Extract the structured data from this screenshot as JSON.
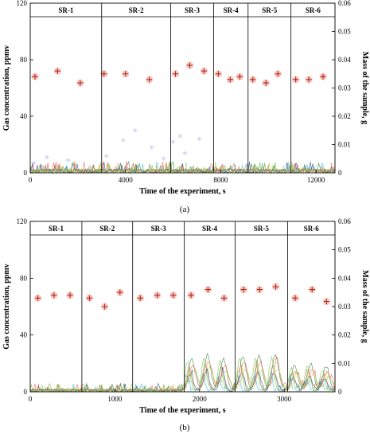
{
  "chart_data": [
    {
      "type": "scatter",
      "panel_label": "(a)",
      "xlabel": "Time of the experiment, s",
      "ylabel": "Gas concentration, ppmv",
      "y2label": "Mass of the sample, g",
      "xlim": [
        0,
        12800
      ],
      "ylim": [
        0,
        120
      ],
      "y2lim": [
        0,
        0.06
      ],
      "xticks": [
        0,
        4000,
        8000,
        12000
      ],
      "yticks": [
        0,
        40,
        80,
        120
      ],
      "y2ticks": [
        0,
        0.01,
        0.02,
        0.03,
        0.04,
        0.05,
        0.06
      ],
      "segments": [
        {
          "label": "SR-1",
          "x0": 0,
          "x1": 3000
        },
        {
          "label": "SR-2",
          "x0": 3000,
          "x1": 5900
        },
        {
          "label": "SR-3",
          "x0": 5900,
          "x1": 7700
        },
        {
          "label": "SR-4",
          "x0": 7700,
          "x1": 9150
        },
        {
          "label": "SR-5",
          "x0": 9150,
          "x1": 10950
        },
        {
          "label": "SR-6",
          "x0": 10950,
          "x1": 12800
        }
      ],
      "mass_points": [
        {
          "x": 200,
          "y": 0.034
        },
        {
          "x": 1150,
          "y": 0.036
        },
        {
          "x": 2100,
          "y": 0.0318
        },
        {
          "x": 3100,
          "y": 0.035
        },
        {
          "x": 4000,
          "y": 0.035
        },
        {
          "x": 5000,
          "y": 0.033
        },
        {
          "x": 6100,
          "y": 0.035
        },
        {
          "x": 6700,
          "y": 0.038
        },
        {
          "x": 7300,
          "y": 0.036
        },
        {
          "x": 7900,
          "y": 0.035
        },
        {
          "x": 8400,
          "y": 0.033
        },
        {
          "x": 8800,
          "y": 0.034
        },
        {
          "x": 9350,
          "y": 0.033
        },
        {
          "x": 9900,
          "y": 0.0318
        },
        {
          "x": 10400,
          "y": 0.035
        },
        {
          "x": 11150,
          "y": 0.033
        },
        {
          "x": 11700,
          "y": 0.033
        },
        {
          "x": 12300,
          "y": 0.034
        }
      ],
      "faint_points": [
        {
          "x": 150,
          "y": 7
        },
        {
          "x": 700,
          "y": 11
        },
        {
          "x": 1600,
          "y": 9
        },
        {
          "x": 2500,
          "y": 4
        },
        {
          "x": 3200,
          "y": 12
        },
        {
          "x": 3900,
          "y": 23
        },
        {
          "x": 4400,
          "y": 30
        },
        {
          "x": 5100,
          "y": 18
        },
        {
          "x": 5600,
          "y": 10
        },
        {
          "x": 6000,
          "y": 22
        },
        {
          "x": 6500,
          "y": 14
        },
        {
          "x": 7100,
          "y": 24
        },
        {
          "x": 6300,
          "y": 26
        }
      ],
      "gas_spike_max_ppmv": 8
    },
    {
      "type": "scatter",
      "panel_label": "(b)",
      "xlabel": "Time of the experiment, s",
      "ylabel": "Gas concentration, ppmv",
      "y2label": "Mass of the sample, g",
      "xlim": [
        0,
        3600
      ],
      "ylim": [
        0,
        120
      ],
      "y2lim": [
        0,
        0.06
      ],
      "xticks": [
        0,
        1000,
        2000,
        3000
      ],
      "yticks": [
        0,
        40,
        80,
        120
      ],
      "y2ticks": [
        0,
        0.01,
        0.02,
        0.03,
        0.04,
        0.05,
        0.06
      ],
      "segments": [
        {
          "label": "SR-1",
          "x0": 0,
          "x1": 610
        },
        {
          "label": "SR-2",
          "x0": 610,
          "x1": 1210
        },
        {
          "label": "SR-3",
          "x0": 1210,
          "x1": 1820
        },
        {
          "label": "SR-4",
          "x0": 1820,
          "x1": 2420
        },
        {
          "label": "SR-5",
          "x0": 2420,
          "x1": 3040
        },
        {
          "label": "SR-6",
          "x0": 3040,
          "x1": 3600
        }
      ],
      "mass_points": [
        {
          "x": 90,
          "y": 0.033
        },
        {
          "x": 280,
          "y": 0.034
        },
        {
          "x": 470,
          "y": 0.034
        },
        {
          "x": 700,
          "y": 0.033
        },
        {
          "x": 880,
          "y": 0.03
        },
        {
          "x": 1060,
          "y": 0.035
        },
        {
          "x": 1300,
          "y": 0.033
        },
        {
          "x": 1500,
          "y": 0.034
        },
        {
          "x": 1690,
          "y": 0.034
        },
        {
          "x": 1900,
          "y": 0.034
        },
        {
          "x": 2100,
          "y": 0.036
        },
        {
          "x": 2290,
          "y": 0.033
        },
        {
          "x": 2520,
          "y": 0.036
        },
        {
          "x": 2710,
          "y": 0.036
        },
        {
          "x": 2900,
          "y": 0.037
        },
        {
          "x": 3130,
          "y": 0.033
        },
        {
          "x": 3330,
          "y": 0.036
        },
        {
          "x": 3500,
          "y": 0.0318
        }
      ],
      "peak_groups": [
        {
          "x": 1890,
          "height_ppmv": 24
        },
        {
          "x": 2080,
          "height_ppmv": 27
        },
        {
          "x": 2270,
          "height_ppmv": 24
        },
        {
          "x": 2500,
          "height_ppmv": 26
        },
        {
          "x": 2690,
          "height_ppmv": 26
        },
        {
          "x": 2880,
          "height_ppmv": 26
        },
        {
          "x": 3110,
          "height_ppmv": 18
        },
        {
          "x": 3300,
          "height_ppmv": 20
        },
        {
          "x": 3480,
          "height_ppmv": 17
        }
      ],
      "gas_spike_max_ppmv": 6
    }
  ],
  "colors": {
    "mass_marker": "#b5271b",
    "mass_halo": "#f2b8b0",
    "gas_series": [
      "#2ab7e8",
      "#6cc23a",
      "#e28a3a",
      "#1f3b8f",
      "#2e7d32",
      "#ff5a3c",
      "#9bd34a"
    ]
  }
}
